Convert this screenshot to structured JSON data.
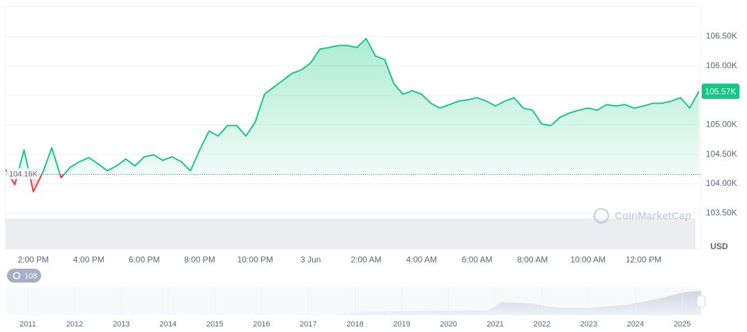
{
  "chart_data": {
    "type": "line",
    "categories": [
      null,
      null,
      null,
      "2:00 PM",
      null,
      null,
      null,
      null,
      null,
      "4:00 PM",
      null,
      null,
      null,
      null,
      null,
      "6:00 PM",
      null,
      null,
      null,
      null,
      null,
      "8:00 PM",
      null,
      null,
      null,
      null,
      null,
      "10:00 PM",
      null,
      null,
      null,
      null,
      null,
      "3 Jun",
      null,
      null,
      null,
      null,
      null,
      "2:00 AM",
      null,
      null,
      null,
      null,
      null,
      "4:00 AM",
      null,
      null,
      null,
      null,
      null,
      "6:00 AM",
      null,
      null,
      null,
      null,
      null,
      "8:00 AM",
      null,
      null,
      null,
      null,
      null,
      "10:00 AM",
      null,
      null,
      null,
      null,
      null,
      "12:00 PM",
      null,
      null,
      null,
      null,
      null,
      null
    ],
    "series": [
      {
        "name": "Price",
        "color": "#16c784",
        "below_color": "#ea3943",
        "values": [
          104244,
          103984,
          104575,
          103866,
          104185,
          104610,
          104103,
          104280,
          104374,
          104445,
          104339,
          104220,
          104303,
          104421,
          104303,
          104457,
          104492,
          104398,
          104457,
          104374,
          104220,
          104575,
          104894,
          104811,
          104988,
          104988,
          104811,
          105047,
          105520,
          105638,
          105756,
          105874,
          105933,
          106051,
          106287,
          106311,
          106346,
          106346,
          106311,
          106465,
          106169,
          106110,
          105697,
          105520,
          105579,
          105520,
          105366,
          105284,
          105343,
          105402,
          105425,
          105461,
          105402,
          105319,
          105402,
          105461,
          105284,
          105248,
          105012,
          104988,
          105130,
          105201,
          105248,
          105284,
          105248,
          105343,
          105319,
          105343,
          105284,
          105319,
          105366,
          105366,
          105402,
          105461,
          105284,
          105570
        ]
      }
    ],
    "baseline": {
      "value": 104160,
      "label": "104.16K"
    },
    "last_price": {
      "value": 105570,
      "label": "105.57K"
    },
    "ylim": [
      102890,
      107000
    ],
    "yticks": [
      {
        "value": 103500,
        "label": "103.50K"
      },
      {
        "value": 104000,
        "label": "104.00K"
      },
      {
        "value": 104500,
        "label": "104.50K"
      },
      {
        "value": 105000,
        "label": "105.00K"
      },
      {
        "value": 105500,
        "label": "105.50K"
      },
      {
        "value": 106000,
        "label": "106.00K"
      },
      {
        "value": 106500,
        "label": "106.50K"
      }
    ],
    "grid": true,
    "currency": "USD",
    "watermark": "CoinMarketCap",
    "zoom_label": "108",
    "navigator_years": [
      "2011",
      "2012",
      "2013",
      "2014",
      "2015",
      "2016",
      "2017",
      "2018",
      "2019",
      "2020",
      "2021",
      "2022",
      "2023",
      "2024",
      "2025"
    ]
  }
}
